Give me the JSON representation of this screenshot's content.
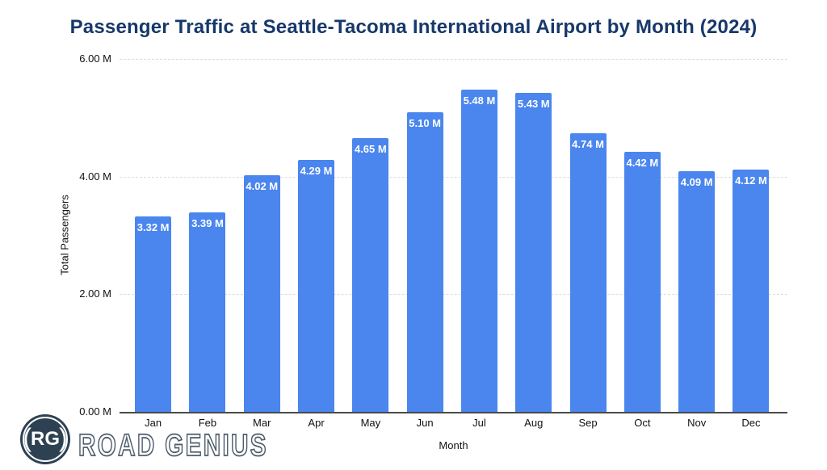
{
  "page": {
    "background_color": "#ffffff"
  },
  "chart_data": {
    "type": "bar",
    "title": "Passenger Traffic at Seattle-Tacoma International Airport by Month (2024)",
    "title_color": "#17386a",
    "categories": [
      "Jan",
      "Feb",
      "Mar",
      "Apr",
      "May",
      "Jun",
      "Jul",
      "Aug",
      "Sep",
      "Oct",
      "Nov",
      "Dec"
    ],
    "values": [
      3.32,
      3.39,
      4.02,
      4.29,
      4.65,
      5.1,
      5.48,
      5.43,
      4.74,
      4.42,
      4.09,
      4.12
    ],
    "bar_labels": [
      "3.32 M",
      "3.39 M",
      "4.02 M",
      "4.29 M",
      "4.65 M",
      "5.10 M",
      "5.48 M",
      "5.43 M",
      "4.74 M",
      "4.42 M",
      "4.09 M",
      "4.12 M"
    ],
    "xlabel": "Month",
    "ylabel": "Total Passengers",
    "ylim": [
      0,
      6
    ],
    "y_ticks": [
      {
        "value": 0,
        "label": "0.00 M"
      },
      {
        "value": 2,
        "label": "2.00 M"
      },
      {
        "value": 4,
        "label": "4.00 M"
      },
      {
        "value": 6,
        "label": "6.00 M"
      }
    ],
    "grid": "horizontal-dashed",
    "legend": "none",
    "bar_color": "#4a86ee",
    "bar_label_color": "#ffffff"
  },
  "branding": {
    "logo_paren_left": "(",
    "logo_monogram": "RG",
    "logo_paren_right": ")",
    "logo_text": "ROAD GENIUS",
    "logo_circle_color": "#2d4152",
    "logo_text_color": "#4e5d6b"
  }
}
